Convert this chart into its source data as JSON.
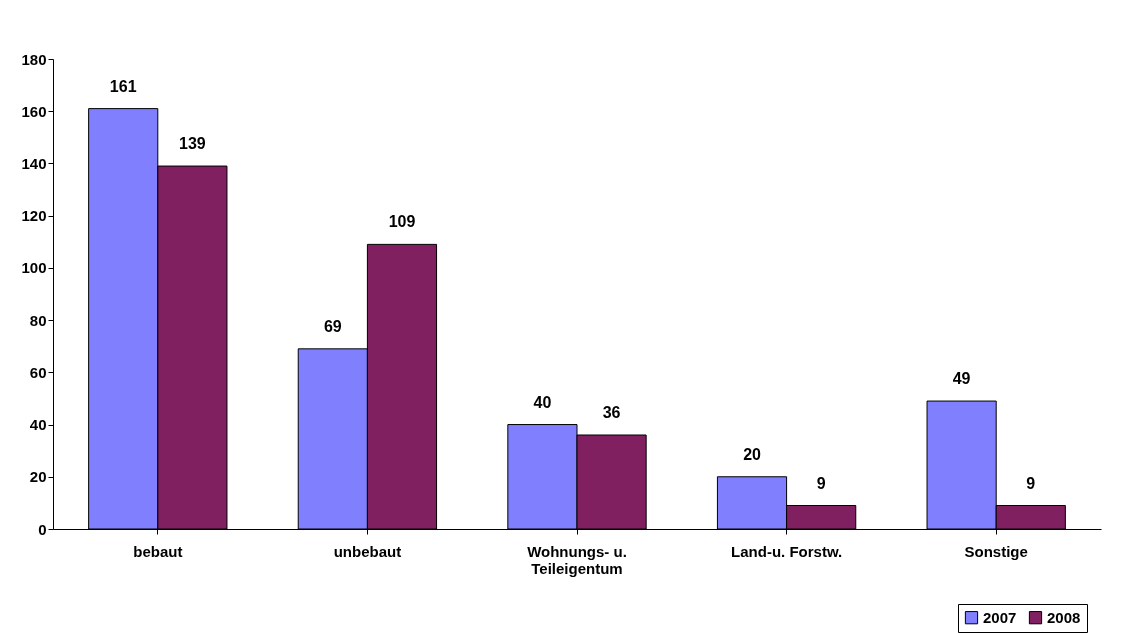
{
  "chart_data": {
    "type": "bar",
    "categories": [
      "bebaut",
      "unbebaut",
      "Wohnungs- u.\nTeileigentum",
      "Land-u. Forstw.",
      "Sonstige"
    ],
    "series": [
      {
        "name": "2007",
        "color": "#8080ff",
        "values": [
          161,
          69,
          40,
          20,
          49
        ]
      },
      {
        "name": "2008",
        "color": "#802060",
        "values": [
          139,
          109,
          36,
          9,
          9
        ]
      }
    ],
    "ylim": [
      0,
      180
    ],
    "yticks": [
      0,
      20,
      40,
      60,
      80,
      100,
      120,
      140,
      160,
      180
    ],
    "grid": false,
    "legend": "bottom right",
    "data_labels": true
  }
}
